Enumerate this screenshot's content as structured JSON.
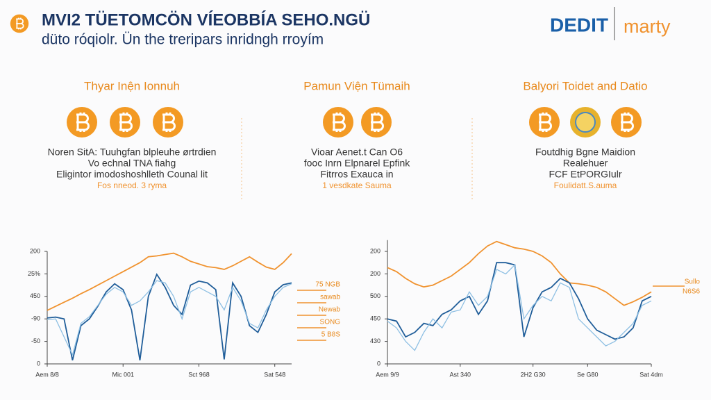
{
  "header": {
    "title": "MVI2 TÜETOMCÖN VÍEOBBÍA SEHO.NGÜ",
    "subtitle": "düto róqiolr. Ün the treripars inridngh rroyím",
    "logo_left": "DEDIT",
    "logo_right": "marty"
  },
  "columns": [
    {
      "title": "Thyar Inện Ionnuh",
      "lines": [
        "Noren SitA: Tuuhgfan blpleuhe ørtrdien",
        "Vo echnal TNA fiahg",
        "Eligintor imodoshoshlleth Counal lit",
        "Fos nneod. 3 ryma"
      ]
    },
    {
      "title": "Pamun Viện Tümaih",
      "lines": [
        "Vioar Aenet.t Can O6",
        "fooc Inrn Elpnarel Epfink",
        "Fitrros Exauca in",
        "1 vesdkate Sauma"
      ]
    },
    {
      "title": "Balyori Toidet and Datio",
      "lines": [
        "Foutdhig Bgne Maidion",
        "Realehuer",
        "FCF EtPORGIulr",
        "Foulidatt.S.auma"
      ]
    }
  ],
  "chart_data": [
    {
      "type": "line",
      "xlim": [
        0,
        29
      ],
      "xticks": [
        {
          "value": 0,
          "label": "Aem 8/8"
        },
        {
          "value": 9,
          "label": "Mic 001"
        },
        {
          "value": 18,
          "label": "Sct 968"
        },
        {
          "value": 27,
          "label": "Sat 548"
        }
      ],
      "ylim": [
        0,
        250
      ],
      "yticks": [
        0,
        {
          "value": 50,
          "label": "-50"
        },
        {
          "value": 100,
          "label": "-90"
        },
        {
          "value": 150,
          "label": "450"
        },
        {
          "value": 200,
          "label": "25%"
        },
        {
          "value": 250,
          "label": "200"
        }
      ],
      "annotations": [
        "75 NGB",
        "sawab",
        "Newab",
        "SONG",
        "5 B8S"
      ],
      "series": [
        {
          "color": "#f0922e",
          "values": [
            119,
            128,
            137,
            146,
            156,
            165,
            175,
            185,
            195,
            205,
            215,
            225,
            238,
            240,
            243,
            246,
            238,
            228,
            222,
            216,
            214,
            210,
            218,
            228,
            238,
            226,
            215,
            210,
            225,
            245
          ]
        },
        {
          "color": "#1f5d99",
          "values": [
            102,
            104,
            100,
            8,
            85,
            100,
            128,
            160,
            178,
            165,
            120,
            8,
            150,
            199,
            170,
            130,
            110,
            175,
            184,
            180,
            165,
            10,
            180,
            150,
            85,
            70,
            110,
            160,
            176,
            180
          ]
        },
        {
          "color": "#8dbfe3",
          "values": [
            98,
            100,
            60,
            20,
            90,
            105,
            130,
            155,
            170,
            160,
            130,
            140,
            160,
            185,
            180,
            150,
            100,
            160,
            170,
            160,
            150,
            120,
            170,
            140,
            90,
            80,
            120,
            150,
            170,
            178
          ]
        }
      ]
    },
    {
      "type": "line",
      "xlim": [
        0,
        29
      ],
      "xticks": [
        {
          "value": 0,
          "label": "Aem 9/9"
        },
        {
          "value": 8,
          "label": "Ast 340"
        },
        {
          "value": 16,
          "label": "2H2 G30"
        },
        {
          "value": 22,
          "label": "Se G80"
        },
        {
          "value": 29,
          "label": "Sat 4dm"
        }
      ],
      "ylim": [
        0,
        275
      ],
      "yticks": [
        0,
        {
          "value": 50,
          "label": "430"
        },
        {
          "value": 100,
          "label": "450"
        },
        {
          "value": 150,
          "label": "500"
        },
        {
          "value": 200,
          "label": "200"
        },
        {
          "value": 250,
          "label": "200"
        }
      ],
      "annotations": [
        "Sullo",
        "N6S6"
      ],
      "series": [
        {
          "color": "#f0922e",
          "values": [
            214,
            205,
            190,
            178,
            171,
            175,
            185,
            195,
            210,
            225,
            245,
            262,
            272,
            265,
            258,
            255,
            250,
            240,
            225,
            200,
            180,
            178,
            175,
            170,
            160,
            145,
            130,
            138,
            148,
            160
          ]
        },
        {
          "color": "#1f5d99",
          "values": [
            100,
            95,
            60,
            70,
            90,
            85,
            110,
            120,
            140,
            150,
            110,
            140,
            225,
            225,
            220,
            60,
            125,
            160,
            170,
            190,
            180,
            145,
            100,
            75,
            65,
            55,
            60,
            80,
            140,
            150
          ]
        },
        {
          "color": "#8dbfe3",
          "values": [
            95,
            80,
            50,
            30,
            70,
            100,
            80,
            115,
            120,
            160,
            130,
            150,
            210,
            200,
            220,
            100,
            130,
            150,
            140,
            180,
            170,
            100,
            80,
            60,
            40,
            50,
            70,
            90,
            130,
            140
          ]
        }
      ]
    }
  ]
}
